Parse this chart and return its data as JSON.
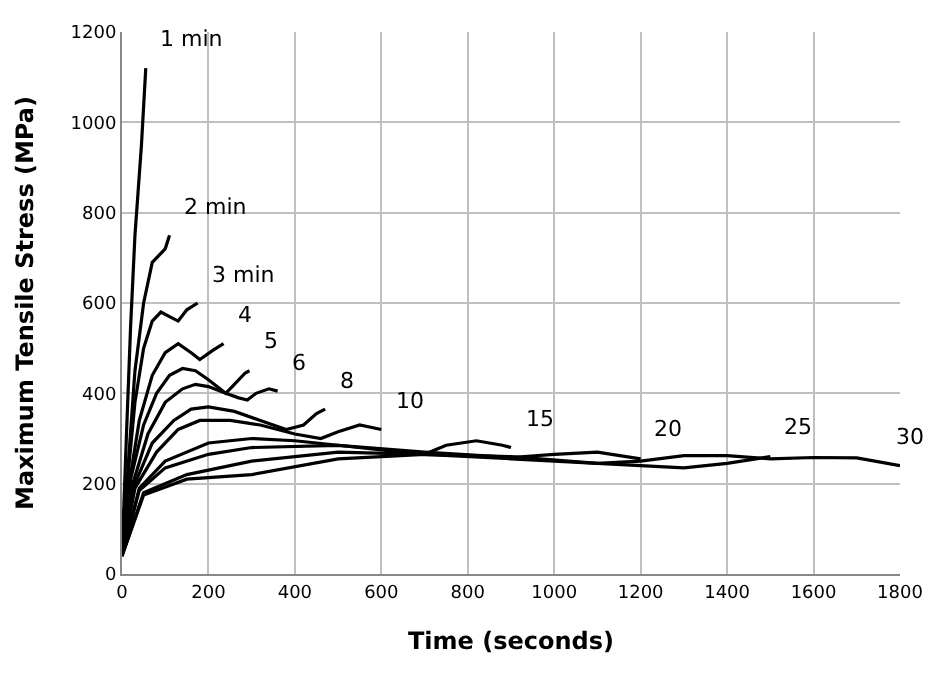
{
  "chart_data": {
    "type": "line",
    "xlabel": "Time (seconds)",
    "ylabel": "Maximum Tensile Stress (MPa)",
    "xlim": [
      0,
      1800
    ],
    "ylim": [
      0,
      1200
    ],
    "xticks": [
      0,
      200,
      400,
      600,
      800,
      1000,
      1200,
      1400,
      1600,
      1800
    ],
    "yticks": [
      0,
      200,
      400,
      600,
      800,
      1000,
      1200
    ],
    "grid": true,
    "legend": false,
    "marker": "none",
    "line_style": "solid",
    "series": [
      {
        "name": "1 min",
        "color": "#000000",
        "x": [
          0,
          10,
          20,
          30,
          45,
          55
        ],
        "values": [
          40,
          300,
          550,
          750,
          950,
          1120
        ]
      },
      {
        "name": "2 min",
        "color": "#000000",
        "x": [
          0,
          15,
          30,
          50,
          70,
          90,
          100,
          110
        ],
        "values": [
          40,
          250,
          450,
          600,
          690,
          710,
          720,
          750
        ]
      },
      {
        "name": "3 min",
        "color": "#000000",
        "x": [
          0,
          15,
          30,
          50,
          70,
          90,
          110,
          130,
          150,
          175
        ],
        "values": [
          40,
          230,
          380,
          500,
          560,
          580,
          570,
          560,
          585,
          600
        ]
      },
      {
        "name": "4",
        "color": "#000000",
        "x": [
          0,
          20,
          40,
          70,
          100,
          130,
          160,
          180,
          210,
          235
        ],
        "values": [
          40,
          220,
          340,
          440,
          490,
          510,
          490,
          475,
          495,
          510
        ]
      },
      {
        "name": "5",
        "color": "#000000",
        "x": [
          0,
          20,
          50,
          80,
          110,
          140,
          170,
          200,
          240,
          260,
          285,
          295
        ],
        "values": [
          40,
          210,
          330,
          400,
          440,
          455,
          450,
          430,
          400,
          420,
          445,
          450
        ]
      },
      {
        "name": "6",
        "color": "#000000",
        "x": [
          0,
          25,
          60,
          100,
          140,
          170,
          200,
          240,
          270,
          290,
          310,
          340,
          360
        ],
        "values": [
          40,
          200,
          310,
          380,
          410,
          420,
          415,
          400,
          390,
          385,
          400,
          410,
          405
        ]
      },
      {
        "name": "8",
        "color": "#000000",
        "x": [
          0,
          30,
          70,
          120,
          160,
          200,
          260,
          320,
          380,
          420,
          450,
          470
        ],
        "values": [
          40,
          200,
          290,
          340,
          365,
          370,
          360,
          340,
          320,
          330,
          355,
          365
        ]
      },
      {
        "name": "10",
        "color": "#000000",
        "x": [
          0,
          30,
          80,
          130,
          180,
          250,
          320,
          400,
          460,
          500,
          550,
          600
        ],
        "values": [
          40,
          190,
          270,
          320,
          340,
          340,
          330,
          310,
          300,
          315,
          330,
          320
        ]
      },
      {
        "name": "15",
        "color": "#000000",
        "x": [
          0,
          40,
          100,
          200,
          300,
          400,
          500,
          600,
          700,
          750,
          820,
          880,
          900
        ],
        "values": [
          40,
          190,
          250,
          290,
          300,
          295,
          285,
          275,
          265,
          285,
          295,
          285,
          280
        ]
      },
      {
        "name": "20",
        "color": "#000000",
        "x": [
          0,
          40,
          100,
          200,
          300,
          500,
          700,
          900,
          1000,
          1100,
          1200
        ],
        "values": [
          40,
          185,
          235,
          265,
          280,
          285,
          270,
          258,
          265,
          270,
          255
        ]
      },
      {
        "name": "25",
        "color": "#000000",
        "x": [
          0,
          50,
          150,
          300,
          500,
          700,
          900,
          1100,
          1300,
          1400,
          1500
        ],
        "values": [
          40,
          180,
          220,
          250,
          270,
          265,
          255,
          245,
          235,
          245,
          260
        ]
      },
      {
        "name": "30",
        "color": "#000000",
        "x": [
          0,
          50,
          150,
          300,
          500,
          700,
          900,
          1100,
          1200,
          1300,
          1400,
          1500,
          1600,
          1700,
          1800
        ],
        "values": [
          40,
          175,
          210,
          220,
          255,
          265,
          260,
          245,
          250,
          262,
          262,
          255,
          258,
          257,
          240
        ]
      }
    ]
  }
}
